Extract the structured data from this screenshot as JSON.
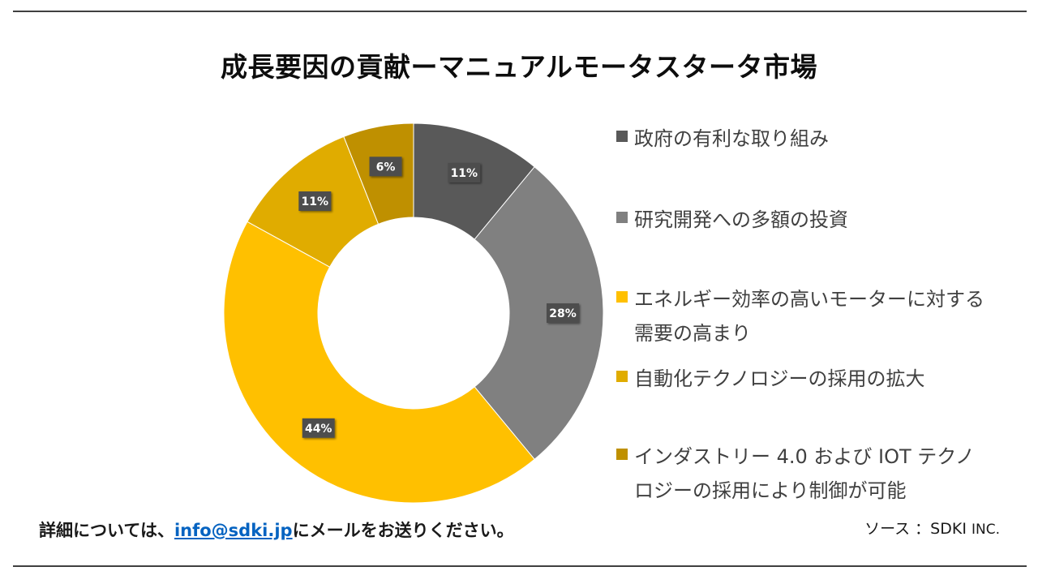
{
  "chart_data": {
    "type": "pie",
    "variant": "donut",
    "title": "成長要因の貢献ーマニュアルモータスタータ市場",
    "categories": [
      "政府の有利な取り組み",
      "研究開発への多額の投資",
      "エネルギー効率の高いモーターに対する需要の高まり",
      "自動化テクノロジーの採用の拡大",
      "インダストリー 4.0 および IOT テクノロジーの採用により制御が可能"
    ],
    "values": [
      11,
      28,
      44,
      11,
      6
    ],
    "data_labels": [
      "11%",
      "28%",
      "44%",
      "11%",
      "6%"
    ],
    "colors": [
      "#595959",
      "#808080",
      "#ffc000",
      "#e0ac00",
      "#bf9000"
    ],
    "legend_position": "right"
  },
  "footer": {
    "note_prefix": "詳細については、",
    "email": "info@sdki.jp",
    "note_suffix": "にメールをお送りください。"
  },
  "source": {
    "label": "ソース ：SDKI",
    "suffix": "INC."
  }
}
